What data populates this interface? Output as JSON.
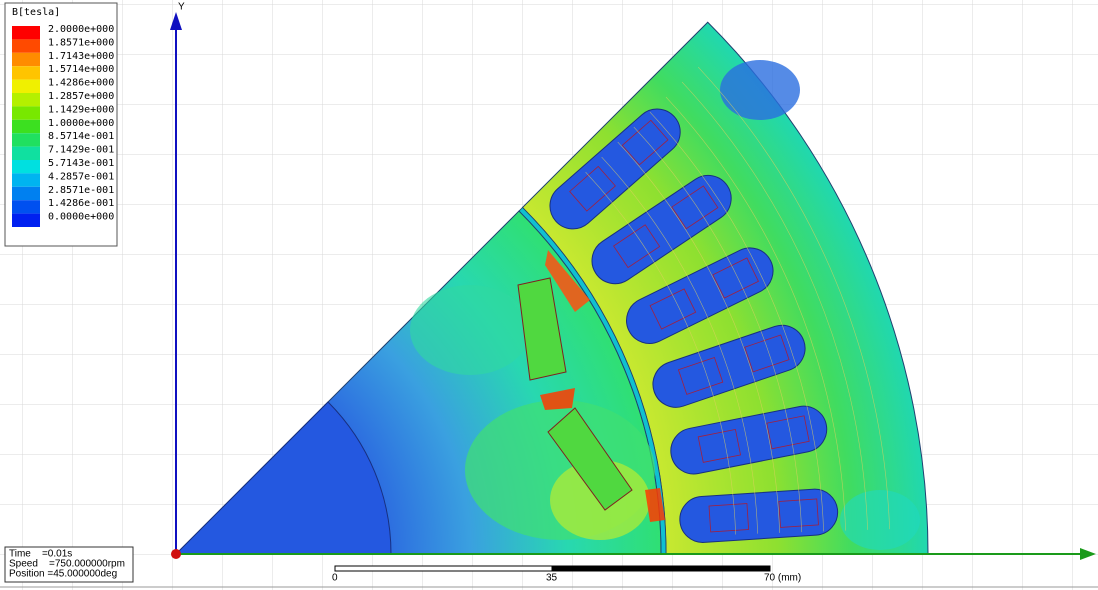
{
  "legend": {
    "title": "B[tesla]",
    "entries": [
      {
        "label": "2.0000e+000",
        "color": "#ff0000"
      },
      {
        "label": "1.8571e+000",
        "color": "#ff4a00"
      },
      {
        "label": "1.7143e+000",
        "color": "#ff8c00"
      },
      {
        "label": "1.5714e+000",
        "color": "#ffc400"
      },
      {
        "label": "1.4286e+000",
        "color": "#f0f000"
      },
      {
        "label": "1.2857e+000",
        "color": "#b4f000"
      },
      {
        "label": "1.1429e+000",
        "color": "#78e800"
      },
      {
        "label": "1.0000e+000",
        "color": "#3ce020"
      },
      {
        "label": "8.5714e-001",
        "color": "#20e060"
      },
      {
        "label": "7.1429e-001",
        "color": "#10e0a0"
      },
      {
        "label": "5.7143e-001",
        "color": "#00e0e0"
      },
      {
        "label": "4.2857e-001",
        "color": "#00b4f0"
      },
      {
        "label": "2.8571e-001",
        "color": "#0080f0"
      },
      {
        "label": "1.4286e-001",
        "color": "#0050f0"
      },
      {
        "label": "0.0000e+000",
        "color": "#0020f0"
      }
    ]
  },
  "info": {
    "time": "Time    =0.01s",
    "speed": "Speed    =750.000000rpm",
    "position": "Position =45.000000deg"
  },
  "scale_bar": {
    "labels": [
      "0",
      "35",
      "70 (mm)"
    ]
  },
  "axes": {
    "y_label": "Y"
  }
}
